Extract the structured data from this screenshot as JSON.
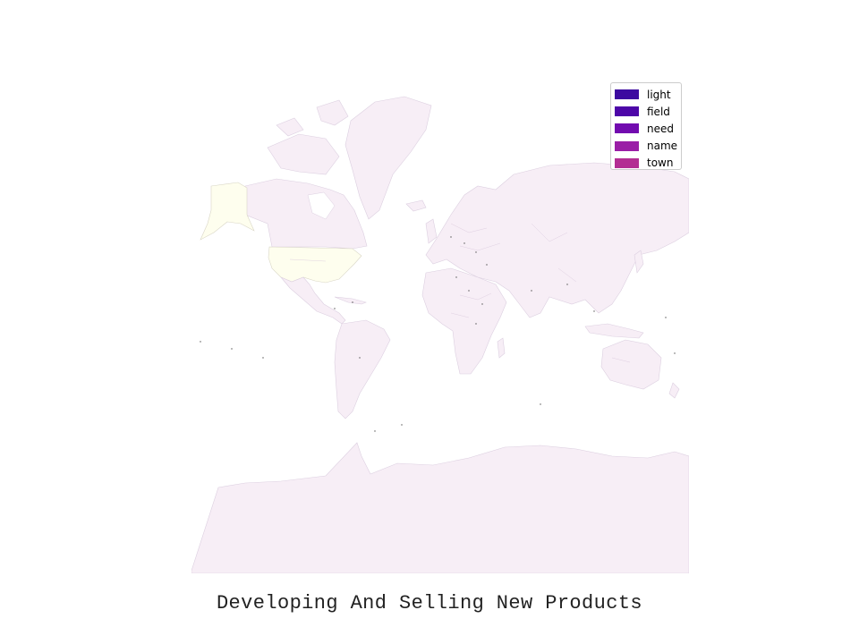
{
  "title": "Developing And Selling New Products",
  "legend": {
    "items": [
      {
        "label": "light",
        "color": "#3c0aa0"
      },
      {
        "label": "field",
        "color": "#4d06a8"
      },
      {
        "label": "need",
        "color": "#720baf"
      },
      {
        "label": "name",
        "color": "#9a1ea6"
      },
      {
        "label": "town",
        "color": "#b32e93"
      }
    ]
  },
  "map": {
    "land_color": "#f7eef6",
    "highlight_color": "#fefeee",
    "highlighted_regions": [
      "United States",
      "Alaska"
    ]
  }
}
